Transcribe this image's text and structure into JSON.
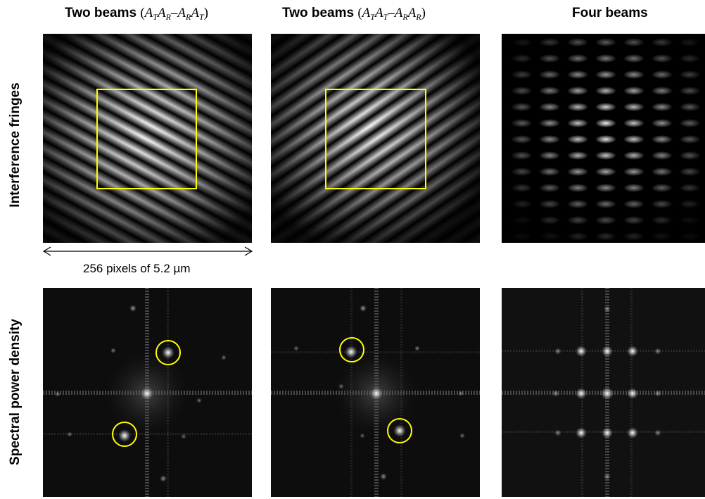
{
  "columns": [
    {
      "title_bold": "Two beams ",
      "title_math": [
        "A",
        "T",
        "A",
        "R",
        "–",
        "A",
        "R",
        "A",
        "T"
      ]
    },
    {
      "title_bold": "Two beams ",
      "title_math": [
        "A",
        "T",
        "A",
        "T",
        "–",
        "A",
        "R",
        "A",
        "R"
      ]
    },
    {
      "title_bold": "Four beams"
    }
  ],
  "rows": [
    {
      "label": "Interference fringes"
    },
    {
      "label": "Spectral power density"
    }
  ],
  "scale": {
    "caption": "256 pixels of 5.2 µm"
  },
  "colors": {
    "roi_box": "#ffff00",
    "marker_circle": "#ffff00",
    "background": "#000000"
  }
}
